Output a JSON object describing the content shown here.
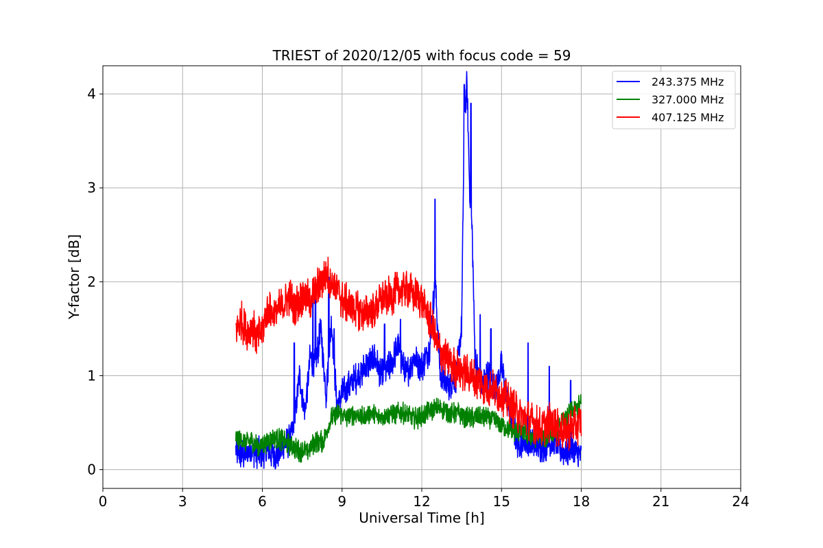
{
  "chart_data": {
    "type": "line",
    "title": "TRIEST of 2020/12/05 with focus code = 59",
    "xlabel": "Universal Time [h]",
    "ylabel": "Y-factor [dB]",
    "xlim": [
      0,
      24
    ],
    "ylim": [
      -0.2,
      4.3
    ],
    "xticks": [
      0,
      3,
      6,
      9,
      12,
      15,
      18,
      21,
      24
    ],
    "yticks": [
      0,
      1,
      2,
      3,
      4
    ],
    "grid": true,
    "legend_position": "top-right",
    "series": [
      {
        "name": "243.375 MHz",
        "color": "#0000ff",
        "x": [
          5.0,
          5.3,
          5.6,
          5.9,
          6.2,
          6.5,
          6.8,
          7.0,
          7.2,
          7.4,
          7.6,
          7.8,
          8.0,
          8.2,
          8.4,
          8.6,
          8.8,
          9.0,
          9.3,
          9.6,
          9.9,
          10.2,
          10.5,
          10.8,
          11.1,
          11.4,
          11.7,
          12.0,
          12.3,
          12.5,
          12.7,
          13.0,
          13.3,
          13.5,
          13.6,
          13.7,
          13.8,
          13.9,
          14.0,
          14.2,
          14.5,
          14.8,
          15.0,
          15.3,
          15.6,
          16.0,
          16.3,
          16.6,
          17.0,
          17.3,
          17.6,
          18.0
        ],
        "y": [
          0.2,
          0.15,
          0.2,
          0.18,
          0.2,
          0.15,
          0.25,
          0.3,
          0.5,
          1.0,
          0.6,
          1.2,
          1.1,
          1.5,
          0.8,
          1.6,
          0.7,
          0.8,
          0.9,
          1.0,
          1.1,
          1.2,
          1.0,
          1.1,
          1.3,
          1.0,
          1.2,
          1.1,
          1.3,
          2.0,
          1.0,
          0.9,
          1.0,
          1.5,
          3.8,
          4.1,
          3.0,
          2.5,
          1.2,
          0.9,
          1.0,
          0.9,
          1.1,
          0.6,
          0.3,
          0.3,
          0.25,
          0.25,
          0.3,
          0.2,
          0.2,
          0.15
        ],
        "peaks": [
          [
            7.2,
            1.35
          ],
          [
            7.9,
            1.9
          ],
          [
            8.0,
            2.0
          ],
          [
            8.5,
            2.05
          ],
          [
            8.7,
            1.5
          ],
          [
            10.6,
            1.55
          ],
          [
            11.2,
            1.6
          ],
          [
            12.5,
            2.88
          ],
          [
            13.6,
            4.1
          ],
          [
            13.7,
            3.8
          ],
          [
            13.85,
            3.9
          ],
          [
            14.2,
            1.65
          ],
          [
            14.6,
            1.5
          ],
          [
            16.0,
            1.35
          ],
          [
            16.8,
            1.1
          ],
          [
            17.6,
            0.95
          ]
        ]
      },
      {
        "name": "327.000 MHz",
        "color": "#008000",
        "x": [
          5.0,
          5.3,
          5.6,
          5.9,
          6.2,
          6.5,
          6.8,
          7.1,
          7.4,
          7.7,
          8.0,
          8.3,
          8.6,
          8.9,
          9.2,
          9.5,
          9.8,
          10.1,
          10.4,
          10.7,
          11.0,
          11.3,
          11.6,
          11.9,
          12.2,
          12.5,
          12.8,
          13.1,
          13.4,
          13.7,
          14.0,
          14.3,
          14.6,
          14.9,
          15.2,
          15.5,
          15.8,
          16.1,
          16.4,
          16.7,
          17.0,
          17.3,
          17.6,
          18.0
        ],
        "y": [
          0.35,
          0.3,
          0.3,
          0.25,
          0.3,
          0.35,
          0.3,
          0.25,
          0.2,
          0.2,
          0.3,
          0.3,
          0.55,
          0.6,
          0.55,
          0.6,
          0.55,
          0.6,
          0.55,
          0.6,
          0.6,
          0.6,
          0.55,
          0.55,
          0.6,
          0.65,
          0.65,
          0.6,
          0.6,
          0.55,
          0.55,
          0.55,
          0.55,
          0.5,
          0.45,
          0.4,
          0.4,
          0.35,
          0.35,
          0.35,
          0.4,
          0.5,
          0.6,
          0.7
        ]
      },
      {
        "name": "407.125 MHz",
        "color": "#ff0000",
        "x": [
          5.0,
          5.2,
          5.4,
          5.6,
          5.8,
          6.0,
          6.2,
          6.4,
          6.6,
          6.8,
          7.0,
          7.2,
          7.4,
          7.6,
          7.8,
          8.0,
          8.2,
          8.4,
          8.6,
          8.8,
          9.0,
          9.3,
          9.6,
          9.9,
          10.2,
          10.5,
          10.8,
          11.1,
          11.4,
          11.7,
          12.0,
          12.3,
          12.6,
          12.9,
          13.2,
          13.5,
          13.8,
          14.1,
          14.4,
          14.7,
          15.0,
          15.3,
          15.6,
          15.9,
          16.2,
          16.5,
          16.8,
          17.1,
          17.4,
          17.7,
          18.0
        ],
        "y": [
          1.5,
          1.6,
          1.45,
          1.55,
          1.4,
          1.5,
          1.7,
          1.65,
          1.7,
          1.75,
          1.85,
          1.75,
          1.8,
          1.85,
          1.8,
          1.9,
          2.0,
          2.1,
          2.0,
          1.95,
          1.8,
          1.75,
          1.7,
          1.65,
          1.7,
          1.8,
          1.85,
          1.9,
          1.95,
          1.85,
          1.8,
          1.6,
          1.3,
          1.2,
          1.1,
          1.05,
          1.0,
          0.95,
          0.9,
          0.85,
          0.8,
          0.7,
          0.6,
          0.55,
          0.5,
          0.45,
          0.5,
          0.45,
          0.4,
          0.45,
          0.5
        ]
      }
    ]
  }
}
